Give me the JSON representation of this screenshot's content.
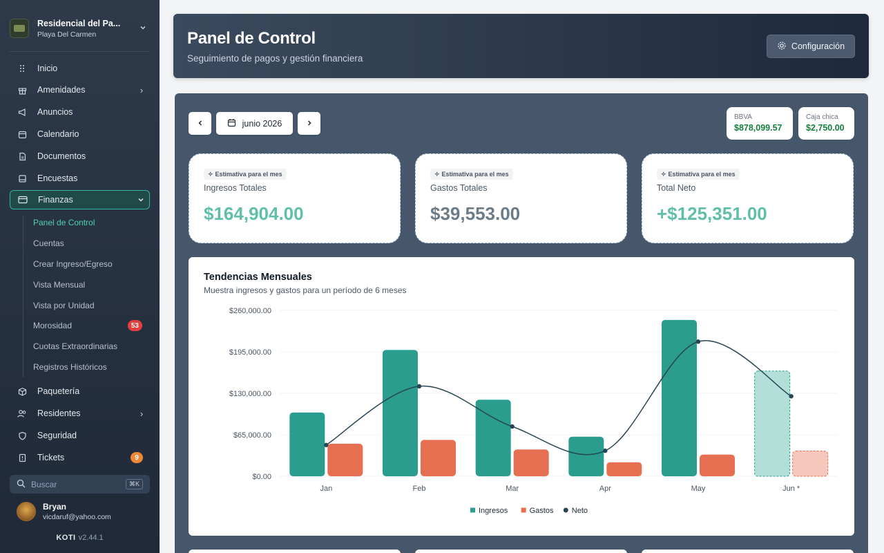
{
  "org": {
    "name": "Residencial del Pa...",
    "location": "Playa Del Carmen"
  },
  "nav": {
    "items": [
      {
        "label": "Inicio",
        "icon": "grid-dots-icon"
      },
      {
        "label": "Amenidades",
        "icon": "gift-icon"
      },
      {
        "label": "Anuncios",
        "icon": "megaphone-icon"
      },
      {
        "label": "Calendario",
        "icon": "calendar-icon"
      },
      {
        "label": "Documentos",
        "icon": "document-icon"
      },
      {
        "label": "Encuestas",
        "icon": "poll-icon"
      },
      {
        "label": "Finanzas",
        "icon": "credit-card-icon"
      },
      {
        "label": "Paquetería",
        "icon": "package-icon"
      },
      {
        "label": "Residentes",
        "icon": "users-icon"
      },
      {
        "label": "Seguridad",
        "icon": "shield-icon"
      },
      {
        "label": "Tickets",
        "icon": "ticket-icon"
      }
    ],
    "finanzas_sub": [
      "Panel de Control",
      "Cuentas",
      "Crear Ingreso/Egreso",
      "Vista Mensual",
      "Vista por Unidad",
      "Morosidad",
      "Cuotas Extraordinarias",
      "Registros Históricos"
    ],
    "badges": {
      "morosidad": "53",
      "tickets": "9"
    }
  },
  "search": {
    "placeholder": "Buscar",
    "shortcut": "⌘K"
  },
  "user": {
    "name": "Bryan",
    "email": "vicdaruf@yahoo.com"
  },
  "brand": {
    "name": "KOTI",
    "version": "v2.44.1"
  },
  "header": {
    "title": "Panel de Control",
    "subtitle": "Seguimiento de pagos y gestión financiera",
    "config_label": "Configuración"
  },
  "period": {
    "label": "junio 2026"
  },
  "accounts": [
    {
      "name": "BBVA",
      "balance": "$878,099.57"
    },
    {
      "name": "Caja chica",
      "balance": "$2,750.00"
    }
  ],
  "kpis": [
    {
      "tag": "Estimativa para el mes",
      "label": "Ingresos Totales",
      "value": "$164,904.00",
      "color": "#5fbfa8"
    },
    {
      "tag": "Estimativa para el mes",
      "label": "Gastos Totales",
      "value": "$39,553.00",
      "color": "#6b7c88"
    },
    {
      "tag": "Estimativa para el mes",
      "label": "Total Neto",
      "value": "+$125,351.00",
      "color": "#5fbfa8"
    }
  ],
  "chart_card": {
    "title": "Tendencias Mensuales",
    "subtitle": "Muestra ingresos y gastos para un período de 6 meses"
  },
  "chart_data": {
    "type": "bar",
    "categories": [
      "Jan",
      "Feb",
      "Mar",
      "Apr",
      "May",
      "Jun *"
    ],
    "series": [
      {
        "name": "Ingresos",
        "type": "bar",
        "color": "#2a9d8f",
        "values": [
          100000,
          198000,
          120000,
          62000,
          245000,
          164904
        ]
      },
      {
        "name": "Gastos",
        "type": "bar",
        "color": "#e76f51",
        "values": [
          51000,
          57000,
          42000,
          22000,
          34000,
          39553
        ]
      },
      {
        "name": "Neto",
        "type": "line",
        "color": "#264653",
        "values": [
          49000,
          141000,
          78000,
          40000,
          211000,
          125351
        ]
      }
    ],
    "projected_category": "Jun *",
    "y_ticks": [
      "$0.00",
      "$65,000.00",
      "$130,000.00",
      "$195,000.00",
      "$260,000.00"
    ],
    "ylim": [
      0,
      260000
    ],
    "grid": true,
    "legend": "bottom-center"
  }
}
